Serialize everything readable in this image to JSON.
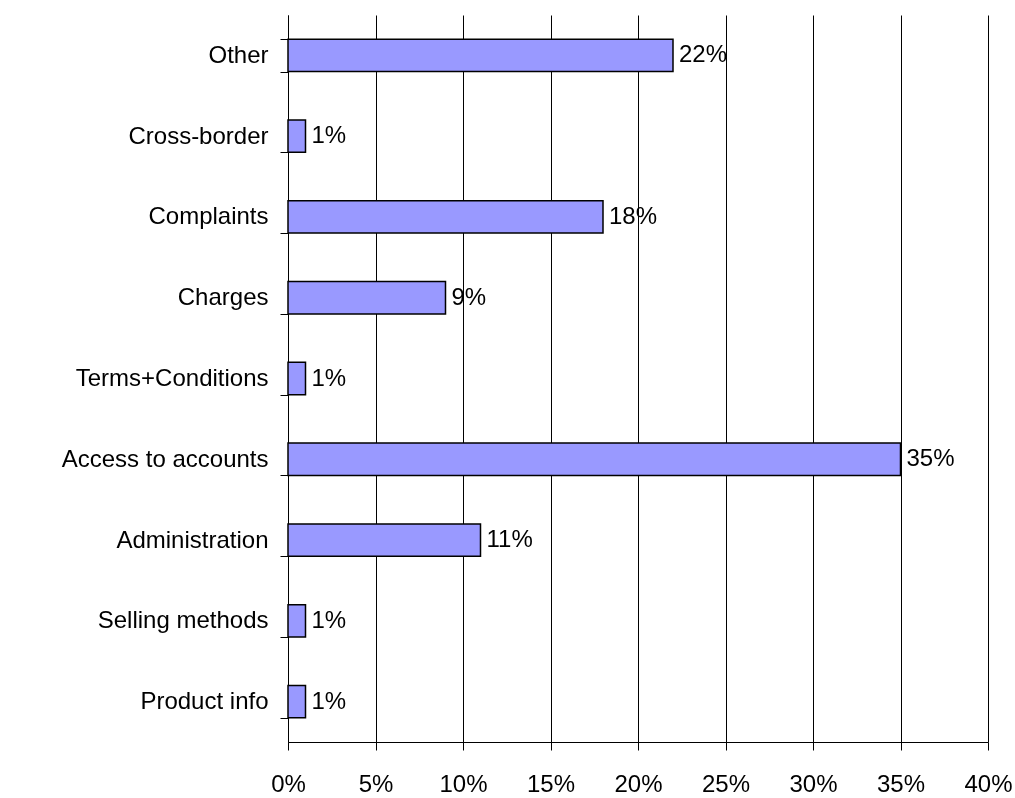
{
  "chart_data": {
    "type": "bar",
    "orientation": "horizontal",
    "categories": [
      "Other",
      "Cross-border",
      "Complaints",
      "Charges",
      "Terms+Conditions",
      "Access to accounts",
      "Administration",
      "Selling methods",
      "Product info"
    ],
    "values": [
      22,
      1,
      18,
      9,
      1,
      35,
      11,
      1,
      1
    ],
    "color": "#9999ff",
    "xlim": [
      0,
      40
    ],
    "xticks": [
      {
        "value": 0,
        "label": "0%"
      },
      {
        "value": 5,
        "label": "5%"
      },
      {
        "value": 10,
        "label": "10%"
      },
      {
        "value": 15,
        "label": "15%"
      },
      {
        "value": 20,
        "label": "20%"
      },
      {
        "value": 25,
        "label": "25%"
      },
      {
        "value": 30,
        "label": "30%"
      },
      {
        "value": 35,
        "label": "35%"
      },
      {
        "value": 40,
        "label": "40%"
      }
    ],
    "value_labels": [
      "22%",
      "1%",
      "18%",
      "9%",
      "1%",
      "35%",
      "11%",
      "1%",
      "1%"
    ],
    "grid": "x"
  }
}
